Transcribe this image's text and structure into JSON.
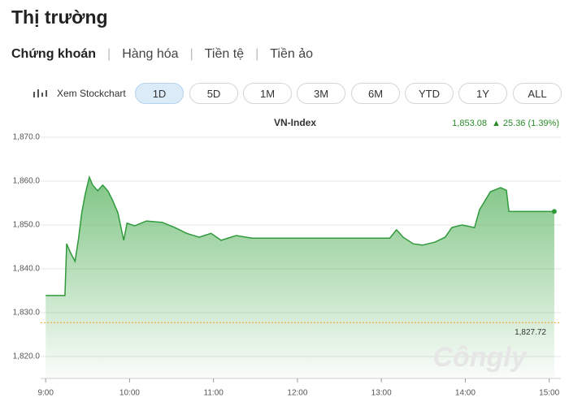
{
  "header": {
    "title": "Thị trường"
  },
  "tabs": [
    "Chứng khoán",
    "Hàng hóa",
    "Tiền tệ",
    "Tiền ảo"
  ],
  "stockchart_link": "Xem Stockchart",
  "ranges": [
    "1D",
    "5D",
    "1M",
    "3M",
    "6M",
    "YTD",
    "1Y",
    "ALL"
  ],
  "watermark": "Côngly",
  "chart_data": {
    "type": "line",
    "title": "VN-Index",
    "last_label": "1,853.08",
    "change_label": "▲ 25.36 (1.39%)",
    "color": "#2f9a3c",
    "x": [
      9.0,
      9.23,
      9.25,
      9.29,
      9.35,
      9.39,
      9.43,
      9.47,
      9.52,
      9.56,
      9.62,
      9.68,
      9.74,
      9.79,
      9.86,
      9.93,
      9.97,
      10.06,
      10.2,
      10.39,
      10.54,
      10.68,
      10.83,
      10.97,
      11.09,
      11.27,
      11.46,
      13.1,
      13.18,
      13.26,
      13.38,
      13.49,
      13.64,
      13.76,
      13.84,
      13.96,
      14.11,
      14.17,
      14.3,
      14.42,
      14.49,
      14.52,
      15.06
    ],
    "values": [
      1833.9,
      1833.9,
      1845.7,
      1843.9,
      1841.7,
      1846.7,
      1852.8,
      1856.9,
      1860.9,
      1859.1,
      1857.8,
      1859.1,
      1857.8,
      1855.9,
      1852.8,
      1846.5,
      1850.4,
      1849.8,
      1850.9,
      1850.6,
      1849.4,
      1848.1,
      1847.2,
      1848.1,
      1846.5,
      1847.6,
      1847.0,
      1847.0,
      1848.9,
      1847.2,
      1845.7,
      1845.4,
      1846.1,
      1847.2,
      1849.4,
      1850.0,
      1849.4,
      1853.5,
      1857.6,
      1858.5,
      1857.9,
      1853.1,
      1853.08
    ],
    "reference_line": {
      "value": 1827.72,
      "label": "1,827.72",
      "color": "#f0a830"
    },
    "xlim": [
      8.94,
      15.1
    ],
    "xticks": [
      {
        "value": 9,
        "label": "9:00"
      },
      {
        "value": 10,
        "label": "10:00"
      },
      {
        "value": 11,
        "label": "11:00"
      },
      {
        "value": 12,
        "label": "12:00"
      },
      {
        "value": 13,
        "label": "13:00"
      },
      {
        "value": 14,
        "label": "14:00"
      },
      {
        "value": 15,
        "label": "15:00"
      }
    ],
    "ylim": [
      1815,
      1872
    ],
    "yticks": [
      {
        "value": 1820,
        "label": "1,820.0"
      },
      {
        "value": 1830,
        "label": "1,830.0"
      },
      {
        "value": 1840,
        "label": "1,840.0"
      },
      {
        "value": 1850,
        "label": "1,850.0"
      },
      {
        "value": 1860,
        "label": "1,860.0"
      },
      {
        "value": 1870,
        "label": "1,870.0"
      }
    ],
    "grid": true
  }
}
